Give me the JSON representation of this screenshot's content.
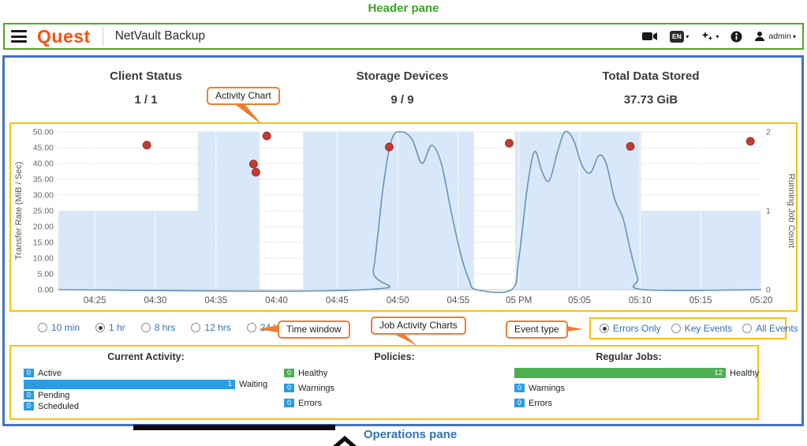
{
  "annotations": {
    "header_pane": "Header pane",
    "activity_chart": "Activity Chart",
    "time_window": "Time window",
    "job_activity_charts": "Job Activity Charts",
    "event_type": "Event type",
    "operations_pane": "Operations pane"
  },
  "header": {
    "brand": "Quest",
    "app_title": "NetVault Backup",
    "language": "EN",
    "user": "admin"
  },
  "summary": {
    "stats": [
      {
        "label": "Client Status",
        "value": "1 / 1"
      },
      {
        "label": "Storage Devices",
        "value": "9 / 9"
      },
      {
        "label": "Total Data Stored",
        "value": "37.73 GiB"
      }
    ]
  },
  "controls": {
    "time_window": {
      "options": [
        {
          "label": "10 min",
          "selected": false
        },
        {
          "label": "1 hr",
          "selected": true
        },
        {
          "label": "8 hrs",
          "selected": false
        },
        {
          "label": "12 hrs",
          "selected": false
        },
        {
          "label": "24 hrs",
          "selected": false
        }
      ]
    },
    "event_type": {
      "options": [
        {
          "label": "Errors Only",
          "selected": true
        },
        {
          "label": "Key Events",
          "selected": false
        },
        {
          "label": "All Events",
          "selected": false
        }
      ]
    }
  },
  "chart_data": {
    "type": "line",
    "title": "Activity Chart",
    "left_axis": {
      "label": "Transfer Rate (MiB / Sec)",
      "min": 0,
      "max": 50,
      "tick_step": 5
    },
    "right_axis": {
      "label": "Running Job Count",
      "min": 0,
      "max": 2,
      "tick_step": 1
    },
    "x_axis": {
      "domain_minutes": [
        262,
        320
      ],
      "tick_minutes": [
        265,
        270,
        275,
        280,
        285,
        290,
        295,
        300,
        305,
        310,
        315,
        320
      ],
      "tick_labels": [
        "04:25",
        "04:30",
        "04:35",
        "04:40",
        "04:45",
        "04:50",
        "04:55",
        "05 PM",
        "05:05",
        "05:10",
        "05:15",
        "05:20"
      ]
    },
    "series": [
      {
        "name": "error-events",
        "type": "scatter",
        "axis": "left",
        "color": "#c23b33",
        "points": [
          [
            269.3,
            45.8
          ],
          [
            278.1,
            39.8
          ],
          [
            278.3,
            37.2
          ],
          [
            279.2,
            48.7
          ],
          [
            289.3,
            45.2
          ],
          [
            299.2,
            46.4
          ],
          [
            309.2,
            45.4
          ],
          [
            319.1,
            47.0
          ]
        ]
      },
      {
        "name": "running-job-count",
        "type": "line",
        "axis": "right",
        "color": "#6593b8",
        "points": [
          [
            262,
            0
          ],
          [
            287.3,
            0
          ],
          [
            288.0,
            0.25
          ],
          [
            288.8,
            1.3
          ],
          [
            289.5,
            1.9
          ],
          [
            290.3,
            2.0
          ],
          [
            291.2,
            1.9
          ],
          [
            292.0,
            1.6
          ],
          [
            292.8,
            1.83
          ],
          [
            293.6,
            1.6
          ],
          [
            294.4,
            1.0
          ],
          [
            295.2,
            0.45
          ],
          [
            295.9,
            0.12
          ],
          [
            296.5,
            0
          ],
          [
            299.4,
            0
          ],
          [
            300.0,
            0.4
          ],
          [
            300.7,
            1.3
          ],
          [
            301.3,
            1.75
          ],
          [
            301.9,
            1.5
          ],
          [
            302.5,
            1.38
          ],
          [
            303.2,
            1.75
          ],
          [
            303.8,
            2.0
          ],
          [
            304.5,
            1.9
          ],
          [
            305.2,
            1.58
          ],
          [
            305.9,
            1.48
          ],
          [
            306.6,
            1.7
          ],
          [
            307.2,
            1.6
          ],
          [
            307.9,
            1.15
          ],
          [
            308.6,
            0.9
          ],
          [
            309.2,
            0.5
          ],
          [
            309.8,
            0.15
          ],
          [
            310.3,
            0
          ],
          [
            320,
            0
          ]
        ]
      },
      {
        "name": "job-activity-band",
        "type": "step-area",
        "axis": "right",
        "color": "#d5e5f8",
        "steps": [
          [
            262,
            273.5,
            1
          ],
          [
            273.5,
            278.6,
            2
          ],
          [
            278.6,
            282.2,
            0
          ],
          [
            282.2,
            296.3,
            2
          ],
          [
            296.3,
            299.7,
            0
          ],
          [
            299.7,
            310.1,
            2
          ],
          [
            310.1,
            320,
            1
          ]
        ]
      }
    ]
  },
  "operations": {
    "current_activity": {
      "title": "Current Activity:",
      "rows": [
        {
          "count": "0",
          "label": "Active",
          "color": "#2d9be0"
        },
        {
          "count": "1",
          "label": "Waiting",
          "color": "#2d9be0"
        },
        {
          "count": "0",
          "label": "Pending",
          "color": "#2d9be0"
        },
        {
          "count": "0",
          "label": "Scheduled",
          "color": "#2d9be0"
        }
      ]
    },
    "policies": {
      "title": "Policies:",
      "rows": [
        {
          "count": "0",
          "label": "Healthy",
          "color": "#4caf50"
        },
        {
          "count": "0",
          "label": "Warnings",
          "color": "#2d9be0"
        },
        {
          "count": "0",
          "label": "Errors",
          "color": "#2d9be0"
        }
      ]
    },
    "regular_jobs": {
      "title": "Regular Jobs:",
      "rows": [
        {
          "count": "12",
          "label": "Healthy",
          "color": "#4caf50"
        },
        {
          "count": "0",
          "label": "Warnings",
          "color": "#2d9be0"
        },
        {
          "count": "0",
          "label": "Errors",
          "color": "#2d9be0"
        }
      ]
    }
  },
  "colors": {
    "header_border": "#54a42c",
    "main_border": "#4472c4",
    "highlight_border": "#ffc000",
    "callout_border": "#ed7d31",
    "brand_orange": "#fb4f14"
  }
}
